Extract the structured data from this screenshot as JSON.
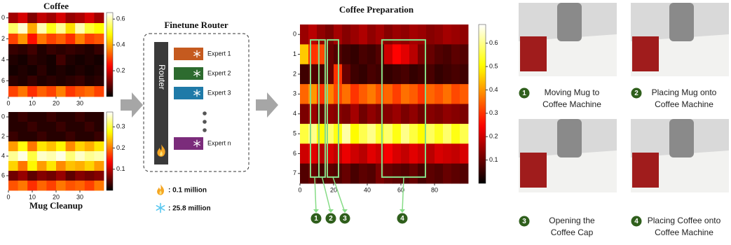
{
  "chart_data": [
    {
      "type": "heatmap",
      "title": "Coffee",
      "colorscale": "hot",
      "xlim": [
        0,
        40
      ],
      "xticks": [
        0,
        10,
        20,
        30
      ],
      "ylim": [
        -0.5,
        7.5
      ],
      "yticks": [
        0,
        2,
        4,
        6
      ],
      "zlim": [
        0,
        0.65
      ],
      "zticks": [
        0.2,
        0.4,
        0.6
      ],
      "z": [
        [
          0.15,
          0.2,
          0.12,
          0.18,
          0.15,
          0.2,
          0.14,
          0.16,
          0.2,
          0.15
        ],
        [
          0.55,
          0.62,
          0.4,
          0.6,
          0.5,
          0.58,
          0.45,
          0.6,
          0.52,
          0.48
        ],
        [
          0.3,
          0.38,
          0.25,
          0.35,
          0.3,
          0.33,
          0.28,
          0.36,
          0.3,
          0.32
        ],
        [
          0.05,
          0.04,
          0.06,
          0.03,
          0.05,
          0.04,
          0.05,
          0.04,
          0.03,
          0.05
        ],
        [
          0.03,
          0.02,
          0.04,
          0.03,
          0.02,
          0.06,
          0.03,
          0.02,
          0.03,
          0.02
        ],
        [
          0.02,
          0.03,
          0.02,
          0.04,
          0.02,
          0.03,
          0.02,
          0.03,
          0.02,
          0.03
        ],
        [
          0.04,
          0.03,
          0.05,
          0.03,
          0.04,
          0.03,
          0.04,
          0.05,
          0.03,
          0.04
        ],
        [
          0.3,
          0.35,
          0.28,
          0.33,
          0.3,
          0.36,
          0.29,
          0.32,
          0.34,
          0.3
        ]
      ]
    },
    {
      "type": "heatmap",
      "title": "Mug Cleanup",
      "colorscale": "hot",
      "xlim": [
        0,
        40
      ],
      "xticks": [
        0,
        10,
        20,
        30
      ],
      "ylim": [
        -0.5,
        7.5
      ],
      "yticks": [
        0,
        2,
        4,
        6
      ],
      "zlim": [
        0,
        0.37
      ],
      "zticks": [
        0.1,
        0.2,
        0.3
      ],
      "z": [
        [
          0.02,
          0.03,
          0.02,
          0.02,
          0.03,
          0.02,
          0.02,
          0.03,
          0.02,
          0.02
        ],
        [
          0.02,
          0.02,
          0.03,
          0.02,
          0.02,
          0.03,
          0.02,
          0.02,
          0.03,
          0.02
        ],
        [
          0.03,
          0.02,
          0.02,
          0.03,
          0.02,
          0.02,
          0.03,
          0.02,
          0.02,
          0.03
        ],
        [
          0.22,
          0.28,
          0.2,
          0.26,
          0.24,
          0.27,
          0.21,
          0.25,
          0.23,
          0.26
        ],
        [
          0.33,
          0.36,
          0.3,
          0.35,
          0.34,
          0.36,
          0.32,
          0.35,
          0.33,
          0.34
        ],
        [
          0.25,
          0.2,
          0.27,
          0.22,
          0.26,
          0.21,
          0.24,
          0.23,
          0.25,
          0.22
        ],
        [
          0.06,
          0.08,
          0.05,
          0.07,
          0.06,
          0.08,
          0.05,
          0.07,
          0.06,
          0.07
        ],
        [
          0.18,
          0.2,
          0.16,
          0.19,
          0.17,
          0.2,
          0.18,
          0.19,
          0.17,
          0.2
        ]
      ]
    },
    {
      "type": "heatmap",
      "title": "Coffee Preparation",
      "colorscale": "hot",
      "xlim": [
        0,
        100
      ],
      "xticks": [
        0,
        20,
        40,
        60,
        80
      ],
      "ylim": [
        -0.5,
        7.5
      ],
      "yticks": [
        0,
        1,
        2,
        3,
        4,
        5,
        6,
        7
      ],
      "zlim": [
        0,
        0.68
      ],
      "zticks": [
        0.1,
        0.2,
        0.3,
        0.4,
        0.5,
        0.6
      ],
      "z": [
        [
          0.15,
          0.18,
          0.14,
          0.12,
          0.16,
          0.13,
          0.15,
          0.17,
          0.14,
          0.16,
          0.13,
          0.15,
          0.14,
          0.16,
          0.15,
          0.13,
          0.14,
          0.16,
          0.15,
          0.14
        ],
        [
          0.45,
          0.3,
          0.32,
          0.1,
          0.08,
          0.06,
          0.05,
          0.07,
          0.06,
          0.08,
          0.2,
          0.25,
          0.22,
          0.18,
          0.12,
          0.1,
          0.08,
          0.07,
          0.09,
          0.08
        ],
        [
          0.06,
          0.08,
          0.07,
          0.1,
          0.3,
          0.1,
          0.06,
          0.05,
          0.07,
          0.06,
          0.05,
          0.06,
          0.07,
          0.05,
          0.06,
          0.07,
          0.05,
          0.06,
          0.07,
          0.06
        ],
        [
          0.35,
          0.4,
          0.3,
          0.38,
          0.32,
          0.36,
          0.3,
          0.34,
          0.37,
          0.33,
          0.35,
          0.31,
          0.36,
          0.34,
          0.3,
          0.35,
          0.33,
          0.36,
          0.32,
          0.34
        ],
        [
          0.12,
          0.15,
          0.1,
          0.14,
          0.13,
          0.12,
          0.16,
          0.11,
          0.14,
          0.12,
          0.13,
          0.15,
          0.12,
          0.14,
          0.11,
          0.13,
          0.12,
          0.14,
          0.13,
          0.12
        ],
        [
          0.55,
          0.6,
          0.5,
          0.58,
          0.52,
          0.62,
          0.5,
          0.56,
          0.6,
          0.54,
          0.58,
          0.52,
          0.6,
          0.55,
          0.5,
          0.57,
          0.53,
          0.58,
          0.52,
          0.56
        ],
        [
          0.2,
          0.22,
          0.18,
          0.21,
          0.19,
          0.23,
          0.2,
          0.18,
          0.22,
          0.2,
          0.24,
          0.21,
          0.19,
          0.22,
          0.2,
          0.18,
          0.21,
          0.2,
          0.19,
          0.21
        ],
        [
          0.08,
          0.1,
          0.07,
          0.09,
          0.08,
          0.1,
          0.07,
          0.09,
          0.08,
          0.12,
          0.1,
          0.09,
          0.08,
          0.1,
          0.07,
          0.09,
          0.08,
          0.1,
          0.09,
          0.08
        ]
      ]
    }
  ],
  "router": {
    "title": "Finetune Router",
    "router_label": "Router",
    "experts": [
      "Expert 1",
      "Expert 2",
      "Expert 3",
      "Expert n"
    ],
    "legend": {
      "trainable": ": 0.1 million",
      "frozen": ": 25.8 million"
    }
  },
  "steps": [
    {
      "number": 1,
      "caption": [
        "Moving Mug to",
        "Coffee Machine"
      ]
    },
    {
      "number": 2,
      "caption": [
        "Placing Mug onto",
        "Coffee Machine"
      ]
    },
    {
      "number": 3,
      "caption": [
        "Opening the",
        "Coffee Cap"
      ]
    },
    {
      "number": 4,
      "caption": [
        "Placing Coffee onto",
        "Coffee Machine"
      ]
    }
  ]
}
